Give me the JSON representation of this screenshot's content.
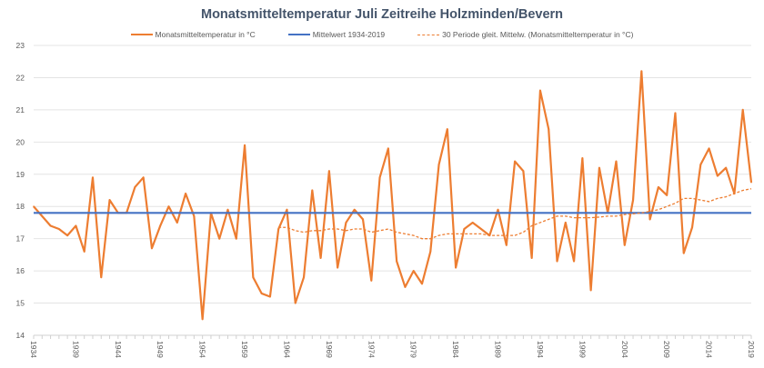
{
  "chart_data": {
    "type": "line",
    "title": "Monatsmitteltemperatur  Juli Zeitreihe Holzminden/Bevern",
    "xlabel": "",
    "ylabel": "",
    "xlim": [
      1934,
      2019
    ],
    "ylim": [
      14,
      23
    ],
    "yticks": [
      14,
      15,
      16,
      17,
      18,
      19,
      20,
      21,
      22,
      23
    ],
    "xticks": [
      1934,
      1939,
      1944,
      1949,
      1954,
      1959,
      1964,
      1969,
      1974,
      1979,
      1984,
      1989,
      1994,
      1999,
      2004,
      2009,
      2014,
      2019
    ],
    "grid": true,
    "legend_position": "top",
    "colors": {
      "temp": "#ed7d31",
      "mean": "#4472c4",
      "moving": "#ed7d31"
    },
    "series": [
      {
        "name": "Monatsmitteltemperatur in °C",
        "x_start": 1934,
        "values": [
          18.0,
          17.7,
          17.4,
          17.3,
          17.1,
          17.4,
          16.6,
          18.9,
          15.8,
          18.2,
          17.8,
          17.8,
          18.6,
          18.9,
          16.7,
          17.4,
          18.0,
          17.5,
          18.4,
          17.7,
          14.5,
          17.8,
          17.0,
          17.9,
          17.0,
          19.9,
          15.8,
          15.3,
          15.2,
          17.3,
          17.9,
          15.0,
          15.8,
          18.5,
          16.4,
          19.1,
          16.1,
          17.5,
          17.9,
          17.6,
          15.7,
          18.9,
          19.8,
          16.3,
          15.5,
          16.0,
          15.6,
          16.6,
          19.3,
          20.4,
          16.1,
          17.3,
          17.5,
          17.3,
          17.1,
          17.9,
          16.8,
          19.4,
          19.1,
          16.4,
          21.6,
          20.4,
          16.3,
          17.5,
          16.3,
          19.5,
          15.4,
          19.2,
          17.8,
          19.4,
          16.8,
          18.2,
          22.2,
          17.6,
          18.6,
          18.35,
          20.9,
          16.55,
          17.35,
          19.3,
          19.8,
          18.95,
          19.2,
          18.4,
          21.0,
          18.75
        ]
      },
      {
        "name": "Mittelwert 1934-2019",
        "x_start": 1934,
        "constant": 17.8
      },
      {
        "name": "30 Periode gleit. Mittelw. (Monatsmitteltemperatur in °C)",
        "x_start": 1963,
        "dashed": true,
        "values": [
          17.35,
          17.35,
          17.25,
          17.2,
          17.25,
          17.25,
          17.3,
          17.3,
          17.25,
          17.3,
          17.3,
          17.2,
          17.25,
          17.3,
          17.2,
          17.15,
          17.1,
          17.0,
          17.0,
          17.1,
          17.15,
          17.15,
          17.15,
          17.15,
          17.15,
          17.1,
          17.1,
          17.1,
          17.1,
          17.2,
          17.4,
          17.5,
          17.6,
          17.7,
          17.7,
          17.65,
          17.65,
          17.65,
          17.67,
          17.7,
          17.7,
          17.75,
          17.77,
          17.8,
          17.85,
          17.9,
          18.0,
          18.1,
          18.25,
          18.25,
          18.2,
          18.15,
          18.25,
          18.3,
          18.4,
          18.5,
          18.55
        ]
      }
    ]
  }
}
